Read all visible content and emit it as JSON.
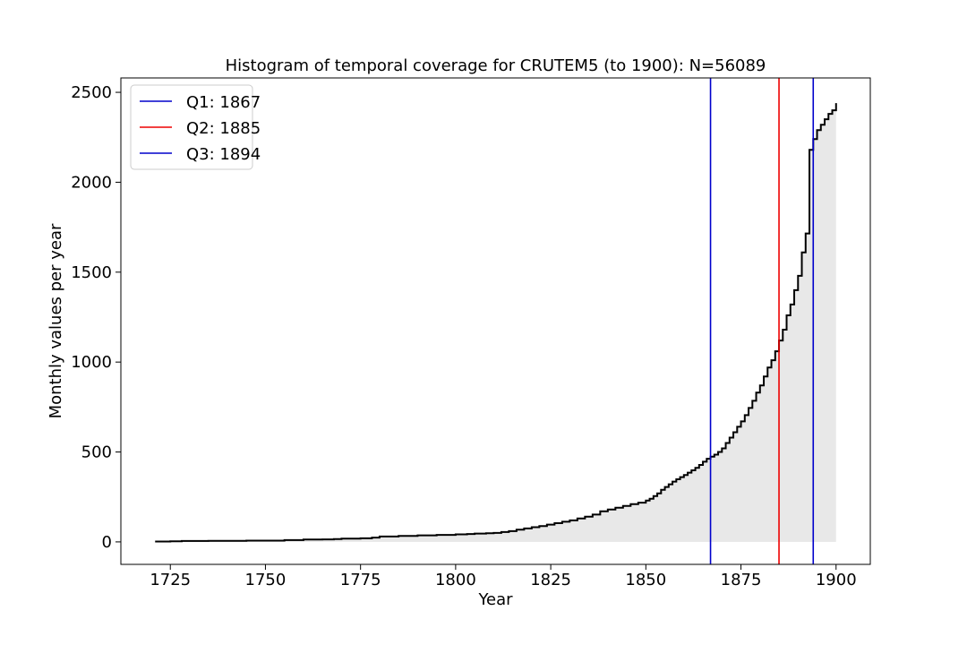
{
  "chart_data": {
    "type": "area",
    "title": "Histogram of temporal coverage for CRUTEM5 (to 1900): N=56089",
    "xlabel": "Year",
    "ylabel": "Monthly values per year",
    "xlim": [
      1712,
      1909
    ],
    "ylim": [
      -125,
      2580
    ],
    "x_ticks": [
      1725,
      1750,
      1775,
      1800,
      1825,
      1850,
      1875,
      1900
    ],
    "y_ticks": [
      0,
      500,
      1000,
      1500,
      2000,
      2500
    ],
    "grid": false,
    "legend_position": "top-left",
    "fill_color": "#e8e8e8",
    "line_color": "#000000",
    "x": [
      1721,
      1725,
      1728,
      1730,
      1735,
      1740,
      1745,
      1750,
      1755,
      1760,
      1765,
      1768,
      1770,
      1775,
      1778,
      1780,
      1785,
      1790,
      1795,
      1800,
      1803,
      1805,
      1808,
      1810,
      1812,
      1814,
      1816,
      1818,
      1820,
      1822,
      1824,
      1826,
      1828,
      1830,
      1832,
      1834,
      1836,
      1838,
      1840,
      1842,
      1844,
      1846,
      1848,
      1850,
      1851,
      1852,
      1853,
      1854,
      1855,
      1856,
      1857,
      1858,
      1859,
      1860,
      1861,
      1862,
      1863,
      1864,
      1865,
      1866,
      1867,
      1868,
      1869,
      1870,
      1871,
      1872,
      1873,
      1874,
      1875,
      1876,
      1877,
      1878,
      1879,
      1880,
      1881,
      1882,
      1883,
      1884,
      1885,
      1886,
      1887,
      1888,
      1889,
      1890,
      1891,
      1892,
      1893,
      1894,
      1895,
      1896,
      1897,
      1898,
      1899,
      1900
    ],
    "values": [
      2,
      3,
      5,
      5,
      6,
      6,
      7,
      7,
      10,
      13,
      14,
      16,
      18,
      20,
      24,
      30,
      33,
      36,
      39,
      42,
      44,
      46,
      48,
      50,
      55,
      60,
      68,
      75,
      82,
      88,
      96,
      104,
      112,
      120,
      130,
      140,
      152,
      170,
      180,
      190,
      200,
      210,
      218,
      230,
      240,
      255,
      270,
      290,
      305,
      320,
      335,
      348,
      360,
      372,
      385,
      398,
      412,
      428,
      446,
      462,
      474,
      485,
      500,
      520,
      550,
      580,
      610,
      640,
      670,
      705,
      745,
      785,
      830,
      870,
      920,
      970,
      1010,
      1060,
      1120,
      1180,
      1260,
      1320,
      1400,
      1480,
      1610,
      1715,
      2180,
      2240,
      2290,
      2320,
      2350,
      2380,
      2400,
      2440
    ],
    "quartiles": [
      {
        "label": "Q1: 1867",
        "year": 1867,
        "color": "#0000cc"
      },
      {
        "label": "Q2: 1885",
        "year": 1885,
        "color": "#ee0000"
      },
      {
        "label": "Q3: 1894",
        "year": 1894,
        "color": "#0000cc"
      }
    ]
  }
}
